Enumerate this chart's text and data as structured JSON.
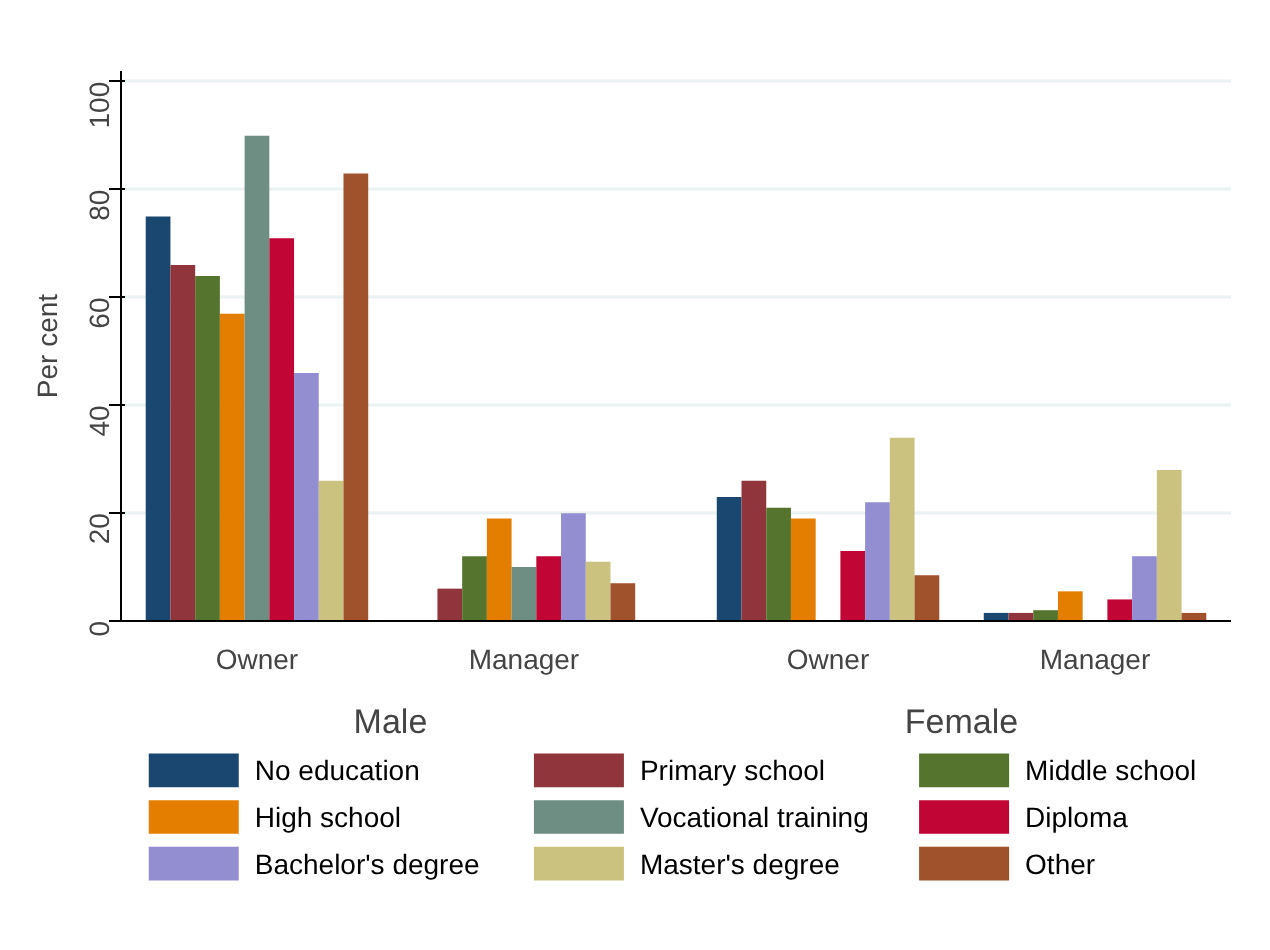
{
  "chart_data": {
    "type": "bar",
    "ylabel": "Per cent",
    "categories": [
      "Owner",
      "Manager",
      "Owner",
      "Manager"
    ],
    "annotations": [
      "Male",
      "Female"
    ],
    "series": [
      {
        "name": "No education",
        "color": "#1a476f",
        "values": [
          75,
          null,
          23,
          1.5
        ]
      },
      {
        "name": "Primary school",
        "color": "#90353b",
        "values": [
          66,
          6,
          26,
          1.5
        ]
      },
      {
        "name": "Middle school",
        "color": "#55752f",
        "values": [
          64,
          12,
          21,
          2
        ]
      },
      {
        "name": "High school",
        "color": "#e37e00",
        "values": [
          57,
          19,
          19,
          5.5
        ]
      },
      {
        "name": "Vocational training",
        "color": "#6e8e84",
        "values": [
          90,
          10,
          null,
          null
        ]
      },
      {
        "name": "Diploma",
        "color": "#c10534",
        "values": [
          71,
          12,
          13,
          4
        ]
      },
      {
        "name": "Bachelor's degree",
        "color": "#938dd2",
        "values": [
          46,
          20,
          22,
          12
        ]
      },
      {
        "name": "Master's degree",
        "color": "#cac27e",
        "values": [
          26,
          11,
          34,
          28
        ]
      },
      {
        "name": "Other",
        "color": "#a0522d",
        "values": [
          83,
          7,
          8.5,
          1.5
        ]
      }
    ],
    "ylim": [
      0,
      102
    ],
    "yticks": [
      0,
      20,
      40,
      60,
      80,
      100
    ],
    "grid": "y",
    "legend": "bottom"
  }
}
